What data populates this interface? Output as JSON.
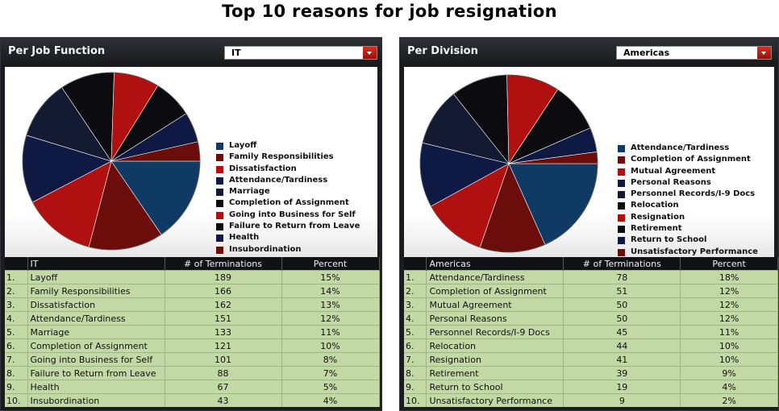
{
  "page_title": "Top 10 reasons for job resignation",
  "colors": {
    "blue_dark": "#0e3a63",
    "red": "#b01010",
    "red_bright": "#c41a14",
    "navy": "#0f1a44",
    "black": "#0c0c10",
    "red_dark": "#6b0d0b",
    "table_row_bg": "#c2d9a5",
    "header_bg": "#111215"
  },
  "left": {
    "title": "Per Job Function",
    "select_value": "IT",
    "columns": [
      "IT",
      "# of Terminations",
      "Percent"
    ],
    "rows": [
      {
        "rank": "1.",
        "name": "Layoff",
        "count": "189",
        "percent": "15%"
      },
      {
        "rank": "2.",
        "name": "Family Responsibilities",
        "count": "166",
        "percent": "14%"
      },
      {
        "rank": "3.",
        "name": "Dissatisfaction",
        "count": "162",
        "percent": "13%"
      },
      {
        "rank": "4.",
        "name": "Attendance/Tardiness",
        "count": "151",
        "percent": "12%"
      },
      {
        "rank": "5.",
        "name": "Marriage",
        "count": "133",
        "percent": "11%"
      },
      {
        "rank": "6.",
        "name": "Completion of Assignment",
        "count": "121",
        "percent": "10%"
      },
      {
        "rank": "7.",
        "name": "Going into Business for Self",
        "count": "101",
        "percent": "8%"
      },
      {
        "rank": "8.",
        "name": "Failure to Return from Leave",
        "count": "88",
        "percent": "7%"
      },
      {
        "rank": "9.",
        "name": "Health",
        "count": "67",
        "percent": "5%"
      },
      {
        "rank": "10.",
        "name": "Insubordination",
        "count": "43",
        "percent": "4%"
      }
    ]
  },
  "right": {
    "title": "Per Division",
    "select_value": "Americas",
    "columns": [
      "Americas",
      "# of Terminations",
      "Percent"
    ],
    "rows": [
      {
        "rank": "1.",
        "name": "Attendance/Tardiness",
        "count": "78",
        "percent": "18%"
      },
      {
        "rank": "2.",
        "name": "Completion of Assignment",
        "count": "51",
        "percent": "12%"
      },
      {
        "rank": "3.",
        "name": "Mutual Agreement",
        "count": "50",
        "percent": "12%"
      },
      {
        "rank": "4.",
        "name": "Personal Reasons",
        "count": "50",
        "percent": "12%"
      },
      {
        "rank": "5.",
        "name": "Personnel Records/I-9 Docs",
        "count": "45",
        "percent": "11%"
      },
      {
        "rank": "6.",
        "name": "Relocation",
        "count": "44",
        "percent": "10%"
      },
      {
        "rank": "7.",
        "name": "Resignation",
        "count": "41",
        "percent": "10%"
      },
      {
        "rank": "8.",
        "name": "Retirement",
        "count": "39",
        "percent": "9%"
      },
      {
        "rank": "9.",
        "name": "Return to School",
        "count": "19",
        "percent": "4%"
      },
      {
        "rank": "10.",
        "name": "Unsatisfactory Performance",
        "count": "9",
        "percent": "2%"
      }
    ]
  },
  "chart_data": [
    {
      "type": "pie",
      "title": "",
      "series": [
        {
          "labels": [
            "Layoff",
            "Family Responsibilities",
            "Dissatisfaction",
            "Attendance/Tardiness",
            "Marriage",
            "Completion of Assignment",
            "Going into Business for Self",
            "Failure to Return from Leave",
            "Health",
            "Insubordination"
          ],
          "values": [
            189,
            166,
            162,
            151,
            133,
            121,
            101,
            88,
            67,
            43
          ],
          "colors": [
            "#0e3a63",
            "#6b0d0b",
            "#b01010",
            "#0f1a44",
            "#151a33",
            "#0c0c10",
            "#b01010",
            "#0c0c10",
            "#0f1a44",
            "#6b0d0b"
          ]
        }
      ],
      "legend_position": "right"
    },
    {
      "type": "pie",
      "title": "",
      "series": [
        {
          "labels": [
            "Attendance/Tardiness",
            "Completion of Assignment",
            "Mutual Agreement",
            "Personal Reasons",
            "Personnel Records/I-9 Docs",
            "Relocation",
            "Resignation",
            "Retirement",
            "Return to School",
            "Unsatisfactory Performance"
          ],
          "values": [
            78,
            51,
            50,
            50,
            45,
            44,
            41,
            39,
            19,
            9
          ],
          "colors": [
            "#0e3a63",
            "#6b0d0b",
            "#b01010",
            "#0f1a44",
            "#151a33",
            "#0c0c10",
            "#b01010",
            "#0c0c10",
            "#0f1a44",
            "#6b0d0b"
          ]
        }
      ],
      "legend_position": "right"
    }
  ]
}
